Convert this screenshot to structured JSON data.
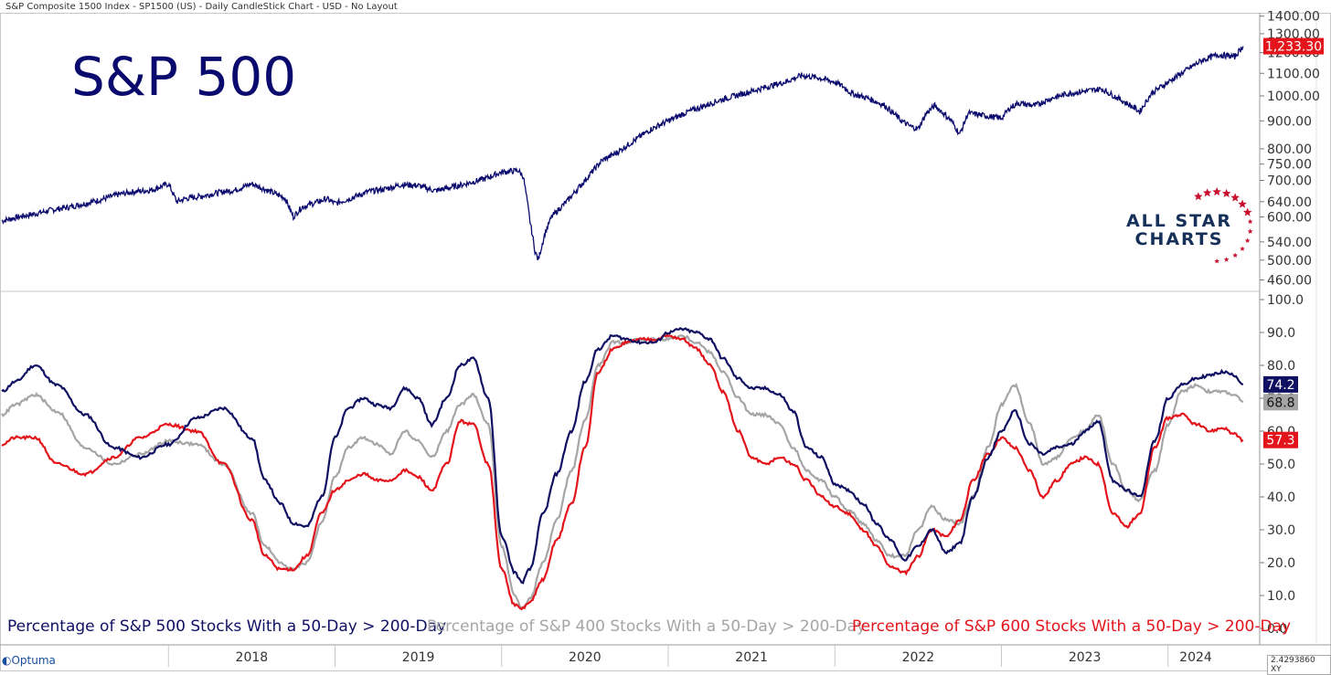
{
  "header": {
    "title": "S&P Composite 1500 Index  - SP1500 (US) - Daily CandleStick Chart - USD - No Layout"
  },
  "big_title": "S&P 500",
  "logo": {
    "line1": "ALL STAR",
    "line2": "CHARTS"
  },
  "footer": {
    "brand": "Optuma",
    "readout": "2.4293860",
    "readout_suffix": "XY"
  },
  "colors": {
    "sp500": "#101063",
    "sp400": "#a5a5a5",
    "sp600": "#e3141b",
    "price": "#0a0a6e",
    "star": "#c8102e"
  },
  "chart_data": [
    {
      "type": "line",
      "title": "",
      "scale": "log",
      "ylim": [
        440,
        1420
      ],
      "y_ticks": [
        "1400.00",
        "1300.00",
        "1200.00",
        "1100.00",
        "1000.00",
        "900.00",
        "800.00",
        "750.00",
        "700.00",
        "640.00",
        "600.00",
        "540.00",
        "500.00",
        "460.00"
      ],
      "last_value_label": "1,233.30",
      "series": [
        {
          "x": [
            2017.0,
            2017.1,
            2017.2,
            2017.3,
            2017.4,
            2017.5,
            2017.6,
            2017.7,
            2017.8,
            2017.9,
            2018.0,
            2018.05,
            2018.1,
            2018.2,
            2018.3,
            2018.4,
            2018.5,
            2018.6,
            2018.7,
            2018.75,
            2018.8,
            2018.9,
            2018.95,
            2019.0,
            2019.1,
            2019.2,
            2019.3,
            2019.4,
            2019.5,
            2019.6,
            2019.7,
            2019.8,
            2019.9,
            2020.0,
            2020.1,
            2020.13,
            2020.17,
            2020.2,
            2020.22,
            2020.26,
            2020.3,
            2020.4,
            2020.5,
            2020.6,
            2020.7,
            2020.8,
            2020.9,
            2021.0,
            2021.1,
            2021.2,
            2021.3,
            2021.4,
            2021.5,
            2021.6,
            2021.7,
            2021.8,
            2021.9,
            2022.0,
            2022.05,
            2022.1,
            2022.2,
            2022.3,
            2022.4,
            2022.45,
            2022.5,
            2022.55,
            2022.6,
            2022.7,
            2022.75,
            2022.8,
            2022.9,
            2023.0,
            2023.05,
            2023.1,
            2023.2,
            2023.3,
            2023.4,
            2023.5,
            2023.6,
            2023.7,
            2023.8,
            2023.83,
            2023.9,
            2024.0,
            2024.1,
            2024.2,
            2024.3,
            2024.4,
            2024.45
          ],
          "values": [
            590,
            600,
            608,
            618,
            625,
            635,
            646,
            660,
            668,
            672,
            690,
            640,
            648,
            655,
            665,
            672,
            690,
            670,
            650,
            600,
            625,
            640,
            648,
            635,
            650,
            668,
            675,
            688,
            685,
            670,
            680,
            692,
            705,
            725,
            730,
            712,
            590,
            520,
            500,
            560,
            600,
            645,
            700,
            760,
            790,
            830,
            870,
            900,
            930,
            955,
            980,
            1000,
            1020,
            1040,
            1060,
            1090,
            1080,
            1060,
            1040,
            1010,
            990,
            960,
            900,
            880,
            870,
            930,
            960,
            900,
            850,
            930,
            920,
            910,
            950,
            970,
            960,
            990,
            1010,
            1020,
            1030,
            990,
            950,
            935,
            1010,
            1060,
            1110,
            1160,
            1190,
            1180,
            1233.3
          ]
        }
      ]
    },
    {
      "type": "line",
      "ylim": [
        0,
        100
      ],
      "y_ticks": [
        "100.0",
        "90.0",
        "80.0",
        "70.0",
        "60.0",
        "50.0",
        "40.0",
        "30.0",
        "20.0",
        "10.0",
        "0.0"
      ],
      "x_ticks": [
        "2018",
        "2019",
        "2020",
        "2021",
        "2022",
        "2023",
        "2024"
      ],
      "series": [
        {
          "name": "Percentage of S&P 500 Stocks With a 50-Day > 200-Day",
          "last_value_label": "74.2",
          "x": [
            2017.0,
            2017.08,
            2017.2,
            2017.33,
            2017.5,
            2017.67,
            2017.83,
            2018.0,
            2018.17,
            2018.33,
            2018.5,
            2018.58,
            2018.67,
            2018.75,
            2018.83,
            2018.92,
            2019.0,
            2019.08,
            2019.17,
            2019.25,
            2019.33,
            2019.42,
            2019.5,
            2019.58,
            2019.67,
            2019.75,
            2019.83,
            2019.92,
            2020.0,
            2020.08,
            2020.12,
            2020.17,
            2020.25,
            2020.33,
            2020.42,
            2020.5,
            2020.58,
            2020.67,
            2020.75,
            2020.83,
            2020.92,
            2021.0,
            2021.08,
            2021.17,
            2021.25,
            2021.33,
            2021.42,
            2021.5,
            2021.58,
            2021.67,
            2021.75,
            2021.83,
            2021.92,
            2022.0,
            2022.08,
            2022.17,
            2022.25,
            2022.33,
            2022.42,
            2022.5,
            2022.58,
            2022.67,
            2022.75,
            2022.83,
            2022.92,
            2023.0,
            2023.08,
            2023.17,
            2023.25,
            2023.33,
            2023.42,
            2023.5,
            2023.58,
            2023.67,
            2023.75,
            2023.83,
            2023.92,
            2024.0,
            2024.08,
            2024.17,
            2024.25,
            2024.33,
            2024.4,
            2024.45
          ],
          "values": [
            72,
            75,
            80,
            74,
            65,
            55,
            52,
            56,
            64,
            67,
            58,
            45,
            38,
            32,
            31,
            40,
            58,
            67,
            70,
            68,
            67,
            73,
            70,
            62,
            70,
            80,
            82,
            70,
            28,
            17,
            14,
            18,
            35,
            47,
            60,
            75,
            85,
            89,
            88,
            87,
            87,
            90,
            91,
            90,
            88,
            82,
            76,
            73,
            73,
            71,
            66,
            55,
            52,
            44,
            42,
            38,
            32,
            27,
            21,
            25,
            30,
            23,
            26,
            40,
            52,
            60,
            66,
            56,
            53,
            55,
            56,
            60,
            63,
            45,
            42,
            40,
            57,
            70,
            74,
            76,
            77,
            78,
            77,
            74.2
          ]
        },
        {
          "name": "Percentage of S&P 400 Stocks With a 50-Day > 200-Day",
          "last_value_label": "68.8",
          "x": [
            2017.0,
            2017.08,
            2017.2,
            2017.33,
            2017.5,
            2017.67,
            2017.83,
            2018.0,
            2018.17,
            2018.33,
            2018.5,
            2018.58,
            2018.67,
            2018.75,
            2018.83,
            2018.92,
            2019.0,
            2019.08,
            2019.17,
            2019.25,
            2019.33,
            2019.42,
            2019.5,
            2019.58,
            2019.67,
            2019.75,
            2019.83,
            2019.92,
            2020.0,
            2020.08,
            2020.12,
            2020.17,
            2020.25,
            2020.33,
            2020.42,
            2020.5,
            2020.58,
            2020.67,
            2020.75,
            2020.83,
            2020.92,
            2021.0,
            2021.08,
            2021.17,
            2021.25,
            2021.33,
            2021.42,
            2021.5,
            2021.58,
            2021.67,
            2021.75,
            2021.83,
            2021.92,
            2022.0,
            2022.08,
            2022.17,
            2022.25,
            2022.33,
            2022.42,
            2022.5,
            2022.58,
            2022.67,
            2022.75,
            2022.83,
            2022.92,
            2023.0,
            2023.08,
            2023.17,
            2023.25,
            2023.33,
            2023.42,
            2023.5,
            2023.58,
            2023.67,
            2023.75,
            2023.83,
            2023.92,
            2024.0,
            2024.08,
            2024.17,
            2024.25,
            2024.33,
            2024.4,
            2024.45
          ],
          "values": [
            65,
            68,
            71,
            66,
            55,
            50,
            53,
            57,
            56,
            50,
            35,
            25,
            20,
            18,
            20,
            32,
            46,
            55,
            58,
            56,
            53,
            60,
            57,
            52,
            60,
            68,
            71,
            62,
            25,
            10,
            6,
            9,
            20,
            33,
            48,
            63,
            80,
            87,
            87,
            88,
            88,
            88,
            89,
            87,
            84,
            78,
            70,
            65,
            65,
            62,
            55,
            48,
            45,
            40,
            36,
            32,
            27,
            22,
            22,
            30,
            37,
            33,
            32,
            40,
            55,
            68,
            74,
            62,
            50,
            52,
            58,
            60,
            65,
            50,
            42,
            39,
            48,
            62,
            72,
            74,
            72,
            72,
            71,
            68.8
          ]
        },
        {
          "name": "Percentage of S&P 600 Stocks With a 50-Day > 200-Day",
          "last_value_label": "57.3",
          "x": [
            2017.0,
            2017.08,
            2017.2,
            2017.33,
            2017.5,
            2017.67,
            2017.83,
            2018.0,
            2018.17,
            2018.33,
            2018.5,
            2018.58,
            2018.67,
            2018.75,
            2018.83,
            2018.92,
            2019.0,
            2019.08,
            2019.17,
            2019.25,
            2019.33,
            2019.42,
            2019.5,
            2019.58,
            2019.67,
            2019.75,
            2019.83,
            2019.92,
            2020.0,
            2020.08,
            2020.12,
            2020.17,
            2020.25,
            2020.33,
            2020.42,
            2020.5,
            2020.58,
            2020.67,
            2020.75,
            2020.83,
            2020.92,
            2021.0,
            2021.08,
            2021.17,
            2021.25,
            2021.33,
            2021.42,
            2021.5,
            2021.58,
            2021.67,
            2021.75,
            2021.83,
            2021.92,
            2022.0,
            2022.08,
            2022.17,
            2022.25,
            2022.33,
            2022.42,
            2022.5,
            2022.58,
            2022.67,
            2022.75,
            2022.83,
            2022.92,
            2023.0,
            2023.08,
            2023.17,
            2023.25,
            2023.33,
            2023.42,
            2023.5,
            2023.58,
            2023.67,
            2023.75,
            2023.83,
            2023.92,
            2024.0,
            2024.08,
            2024.17,
            2024.25,
            2024.33,
            2024.4,
            2024.45
          ],
          "values": [
            56,
            58,
            58,
            50,
            47,
            52,
            58,
            62,
            60,
            50,
            33,
            22,
            18,
            18,
            22,
            35,
            42,
            45,
            47,
            45,
            45,
            48,
            46,
            42,
            50,
            63,
            62,
            50,
            18,
            7,
            6,
            8,
            15,
            27,
            38,
            55,
            78,
            85,
            87,
            88,
            88,
            89,
            88,
            85,
            80,
            72,
            60,
            52,
            50,
            52,
            50,
            45,
            40,
            37,
            35,
            30,
            25,
            19,
            17,
            22,
            30,
            28,
            33,
            45,
            53,
            58,
            55,
            48,
            40,
            45,
            50,
            52,
            50,
            35,
            31,
            35,
            55,
            64,
            65,
            62,
            60,
            61,
            59,
            57.3
          ]
        }
      ]
    }
  ]
}
